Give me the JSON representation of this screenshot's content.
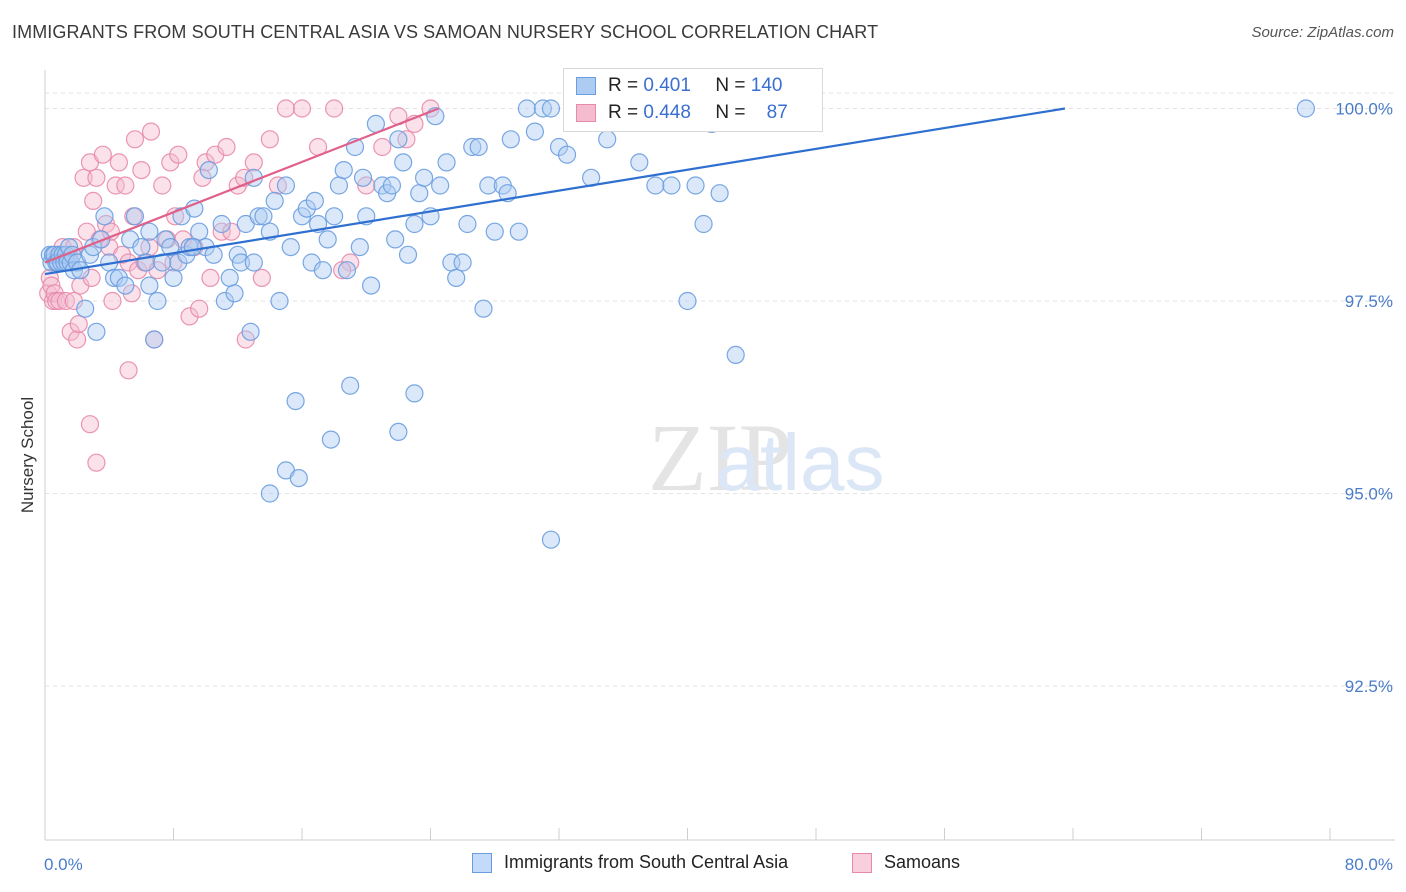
{
  "title": "IMMIGRANTS FROM SOUTH CENTRAL ASIA VS SAMOAN NURSERY SCHOOL CORRELATION CHART",
  "source": "Source: ZipAtlas.com",
  "colors": {
    "blue": "#6a9de0",
    "blue_fill": "#aeccf1",
    "blue_line": "#2f6fd0",
    "pink": "#e88aab",
    "pink_fill": "#f5bcd0",
    "pink_line": "#e0608a",
    "tick_text": "#4a7cc9"
  },
  "legend_top": {
    "blue": {
      "r_label": "R =",
      "r_value": "0.401",
      "n_label": "N =",
      "n_value": "140"
    },
    "pink": {
      "r_label": "R =",
      "r_value": "0.448",
      "n_label": "N =",
      "n_value": "87"
    }
  },
  "legend_bottom": {
    "blue": "Immigrants from South Central Asia",
    "pink": "Samoans"
  },
  "chart_data": {
    "type": "scatter",
    "title": "IMMIGRANTS FROM SOUTH CENTRAL ASIA VS SAMOAN NURSERY SCHOOL CORRELATION CHART",
    "xlabel": "",
    "ylabel": "Nursery School",
    "xlim": [
      0,
      80
    ],
    "ylim": [
      90.5,
      100.5
    ],
    "x_tick_labels": [
      "0.0%",
      "80.0%"
    ],
    "y_ticks": [
      92.5,
      95.0,
      97.5,
      100.0
    ],
    "y_tick_labels": [
      "92.5%",
      "95.0%",
      "97.5%",
      "100.0%"
    ],
    "grid": true,
    "watermark": "ZIPatlas",
    "series": [
      {
        "name": "Immigrants from South Central Asia",
        "color": "#6a9de0",
        "trend": {
          "x": [
            0.0,
            63.5
          ],
          "y": [
            97.85,
            100.0
          ]
        },
        "points": [
          [
            0.3,
            98.1
          ],
          [
            0.4,
            98.0
          ],
          [
            0.5,
            98.1
          ],
          [
            0.6,
            98.1
          ],
          [
            0.7,
            98.0
          ],
          [
            0.8,
            98.0
          ],
          [
            0.9,
            98.1
          ],
          [
            1.0,
            98.0
          ],
          [
            1.1,
            98.1
          ],
          [
            1.2,
            98.0
          ],
          [
            1.3,
            98.1
          ],
          [
            1.4,
            98.0
          ],
          [
            1.5,
            98.2
          ],
          [
            1.6,
            98.0
          ],
          [
            1.7,
            98.1
          ],
          [
            1.8,
            97.9
          ],
          [
            2.0,
            98.0
          ],
          [
            2.2,
            97.9
          ],
          [
            2.5,
            97.4
          ],
          [
            2.8,
            98.1
          ],
          [
            3.0,
            98.2
          ],
          [
            3.2,
            97.1
          ],
          [
            3.5,
            98.3
          ],
          [
            3.7,
            98.6
          ],
          [
            4.0,
            98.0
          ],
          [
            4.3,
            97.8
          ],
          [
            4.6,
            97.8
          ],
          [
            5.0,
            97.7
          ],
          [
            5.3,
            98.3
          ],
          [
            5.6,
            98.6
          ],
          [
            6.0,
            98.2
          ],
          [
            6.3,
            98.0
          ],
          [
            6.5,
            97.7
          ],
          [
            6.8,
            97.0
          ],
          [
            7.0,
            97.5
          ],
          [
            7.3,
            98.0
          ],
          [
            7.5,
            98.3
          ],
          [
            7.8,
            98.2
          ],
          [
            8.0,
            97.8
          ],
          [
            8.3,
            98.0
          ],
          [
            8.5,
            98.6
          ],
          [
            8.8,
            98.1
          ],
          [
            9.0,
            98.2
          ],
          [
            9.3,
            98.7
          ],
          [
            9.6,
            98.4
          ],
          [
            10.0,
            98.2
          ],
          [
            10.2,
            99.2
          ],
          [
            10.5,
            98.1
          ],
          [
            11.0,
            98.5
          ],
          [
            11.2,
            97.5
          ],
          [
            11.5,
            97.8
          ],
          [
            11.8,
            97.6
          ],
          [
            12.0,
            98.1
          ],
          [
            12.2,
            98.0
          ],
          [
            12.5,
            98.5
          ],
          [
            12.8,
            97.1
          ],
          [
            13.0,
            98.0
          ],
          [
            13.3,
            98.6
          ],
          [
            13.6,
            98.6
          ],
          [
            14.0,
            98.4
          ],
          [
            14.3,
            98.8
          ],
          [
            14.6,
            97.5
          ],
          [
            15.0,
            99.0
          ],
          [
            15.3,
            98.2
          ],
          [
            15.6,
            96.2
          ],
          [
            16.0,
            98.6
          ],
          [
            16.3,
            98.7
          ],
          [
            16.6,
            98.0
          ],
          [
            17.0,
            98.5
          ],
          [
            17.3,
            97.9
          ],
          [
            17.6,
            98.3
          ],
          [
            18.0,
            98.6
          ],
          [
            18.3,
            99.0
          ],
          [
            18.6,
            99.2
          ],
          [
            18.8,
            97.9
          ],
          [
            19.0,
            96.4
          ],
          [
            19.3,
            99.5
          ],
          [
            19.6,
            98.2
          ],
          [
            20.0,
            98.6
          ],
          [
            20.3,
            97.7
          ],
          [
            20.6,
            99.8
          ],
          [
            21.0,
            99.0
          ],
          [
            21.3,
            98.9
          ],
          [
            21.6,
            99.0
          ],
          [
            22.0,
            99.6
          ],
          [
            22.3,
            99.3
          ],
          [
            22.6,
            98.1
          ],
          [
            23.0,
            98.5
          ],
          [
            23.3,
            98.9
          ],
          [
            23.6,
            99.1
          ],
          [
            24.0,
            98.6
          ],
          [
            24.3,
            99.9
          ],
          [
            24.6,
            99.0
          ],
          [
            25.0,
            99.3
          ],
          [
            25.3,
            98.0
          ],
          [
            25.6,
            97.8
          ],
          [
            26.0,
            98.0
          ],
          [
            26.3,
            98.5
          ],
          [
            26.6,
            99.5
          ],
          [
            27.0,
            99.5
          ],
          [
            27.3,
            97.4
          ],
          [
            27.6,
            99.0
          ],
          [
            28.0,
            98.4
          ],
          [
            28.5,
            99.0
          ],
          [
            29.0,
            99.6
          ],
          [
            29.5,
            98.4
          ],
          [
            30.0,
            100.0
          ],
          [
            30.5,
            99.7
          ],
          [
            31.0,
            100.0
          ],
          [
            31.5,
            100.0
          ],
          [
            32.0,
            99.5
          ],
          [
            32.5,
            99.4
          ],
          [
            33.0,
            100.0
          ],
          [
            34.0,
            99.1
          ],
          [
            35.0,
            99.6
          ],
          [
            36.0,
            99.9
          ],
          [
            37.0,
            99.3
          ],
          [
            38.0,
            99.0
          ],
          [
            39.0,
            99.0
          ],
          [
            40.0,
            97.5
          ],
          [
            41.0,
            98.5
          ],
          [
            42.0,
            98.9
          ],
          [
            43.0,
            96.8
          ],
          [
            31.5,
            94.4
          ],
          [
            15.0,
            95.3
          ],
          [
            15.8,
            95.2
          ],
          [
            17.8,
            95.7
          ],
          [
            22.0,
            95.8
          ],
          [
            23.0,
            96.3
          ],
          [
            14.0,
            95.0
          ],
          [
            78.5,
            100.0
          ],
          [
            40.5,
            99.0
          ],
          [
            41.5,
            99.8
          ],
          [
            6.5,
            98.4
          ],
          [
            9.2,
            98.2
          ],
          [
            13.0,
            99.1
          ],
          [
            16.8,
            98.8
          ],
          [
            19.8,
            99.1
          ],
          [
            21.8,
            98.3
          ],
          [
            28.8,
            98.9
          ]
        ]
      },
      {
        "name": "Samoans",
        "color": "#e88aab",
        "trend": {
          "x": [
            0.0,
            24.5
          ],
          "y": [
            98.0,
            100.0
          ]
        },
        "points": [
          [
            0.2,
            97.6
          ],
          [
            0.3,
            97.8
          ],
          [
            0.4,
            97.7
          ],
          [
            0.5,
            97.5
          ],
          [
            0.6,
            97.6
          ],
          [
            0.7,
            97.5
          ],
          [
            0.8,
            98.1
          ],
          [
            0.9,
            97.5
          ],
          [
            1.0,
            98.0
          ],
          [
            1.1,
            98.2
          ],
          [
            1.2,
            98.0
          ],
          [
            1.3,
            97.5
          ],
          [
            1.5,
            98.1
          ],
          [
            1.6,
            97.1
          ],
          [
            1.8,
            97.5
          ],
          [
            2.0,
            97.0
          ],
          [
            2.2,
            97.7
          ],
          [
            2.4,
            99.1
          ],
          [
            2.6,
            98.4
          ],
          [
            2.8,
            99.3
          ],
          [
            3.0,
            98.8
          ],
          [
            3.2,
            99.1
          ],
          [
            3.4,
            98.3
          ],
          [
            3.6,
            99.4
          ],
          [
            3.8,
            98.5
          ],
          [
            4.0,
            98.2
          ],
          [
            4.2,
            97.5
          ],
          [
            4.4,
            99.0
          ],
          [
            4.6,
            99.3
          ],
          [
            4.8,
            98.1
          ],
          [
            5.0,
            99.0
          ],
          [
            5.2,
            98.0
          ],
          [
            5.4,
            97.6
          ],
          [
            5.6,
            99.6
          ],
          [
            5.8,
            97.9
          ],
          [
            6.0,
            99.2
          ],
          [
            6.2,
            98.0
          ],
          [
            6.5,
            98.2
          ],
          [
            6.8,
            97.0
          ],
          [
            7.0,
            97.9
          ],
          [
            7.3,
            99.0
          ],
          [
            7.6,
            98.3
          ],
          [
            7.8,
            99.3
          ],
          [
            8.0,
            98.0
          ],
          [
            8.3,
            99.4
          ],
          [
            8.6,
            98.3
          ],
          [
            9.0,
            97.3
          ],
          [
            9.3,
            98.2
          ],
          [
            9.6,
            97.4
          ],
          [
            10.0,
            99.3
          ],
          [
            10.3,
            97.8
          ],
          [
            10.6,
            99.4
          ],
          [
            11.0,
            98.4
          ],
          [
            11.3,
            99.5
          ],
          [
            11.6,
            98.4
          ],
          [
            12.0,
            99.0
          ],
          [
            12.5,
            97.0
          ],
          [
            13.0,
            99.3
          ],
          [
            13.5,
            97.8
          ],
          [
            14.0,
            99.6
          ],
          [
            15.0,
            100.0
          ],
          [
            16.0,
            100.0
          ],
          [
            17.0,
            99.5
          ],
          [
            18.0,
            100.0
          ],
          [
            19.0,
            98.0
          ],
          [
            20.0,
            99.0
          ],
          [
            21.0,
            99.5
          ],
          [
            22.0,
            99.9
          ],
          [
            23.0,
            99.8
          ],
          [
            24.0,
            100.0
          ],
          [
            2.8,
            95.9
          ],
          [
            3.2,
            95.4
          ],
          [
            5.2,
            96.6
          ],
          [
            1.0,
            98.1
          ],
          [
            1.4,
            98.0
          ],
          [
            1.8,
            98.2
          ],
          [
            2.1,
            97.2
          ],
          [
            2.9,
            97.8
          ],
          [
            4.1,
            98.4
          ],
          [
            5.5,
            98.6
          ],
          [
            6.6,
            99.7
          ],
          [
            8.1,
            98.6
          ],
          [
            9.8,
            99.1
          ],
          [
            12.4,
            99.1
          ],
          [
            14.5,
            99.0
          ],
          [
            18.5,
            97.9
          ],
          [
            22.5,
            99.6
          ]
        ]
      }
    ]
  }
}
